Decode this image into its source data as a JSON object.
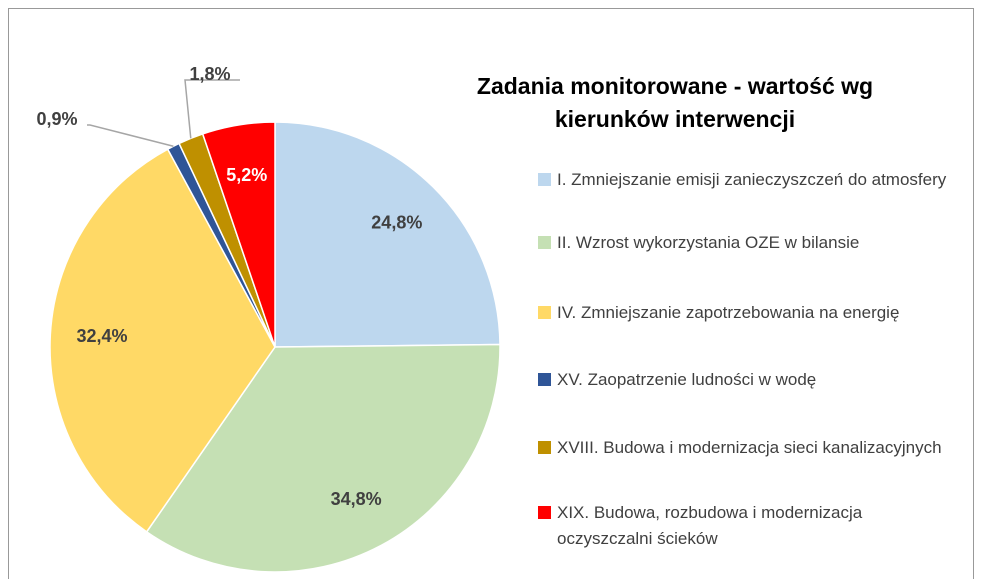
{
  "chart_data": {
    "type": "pie",
    "title": "Zadania monitorowane - wartość wg kierunków interwencji",
    "categories": [
      "I. Zmniejszanie emisji zanieczyszczeń do atmosfery",
      "II. Wzrost wykorzystania OZE w bilansie",
      "IV. Zmniejszanie zapotrzebowania na energię",
      "XV. Zaopatrzenie ludności w wodę",
      "XVIII. Budowa i modernizacja sieci kanalizacyjnych",
      "XIX. Budowa, rozbudowa i modernizacja oczyszczalni ścieków"
    ],
    "values": [
      24.8,
      34.8,
      32.4,
      0.9,
      1.8,
      5.2
    ],
    "value_labels": [
      "24,8%",
      "34,8%",
      "32,4%",
      "0,9%",
      "1,8%",
      "5,2%"
    ],
    "colors": [
      "#bdd7ee",
      "#c5e0b4",
      "#ffd966",
      "#2f5597",
      "#bf9000",
      "#ff0000"
    ],
    "legend": "right"
  }
}
